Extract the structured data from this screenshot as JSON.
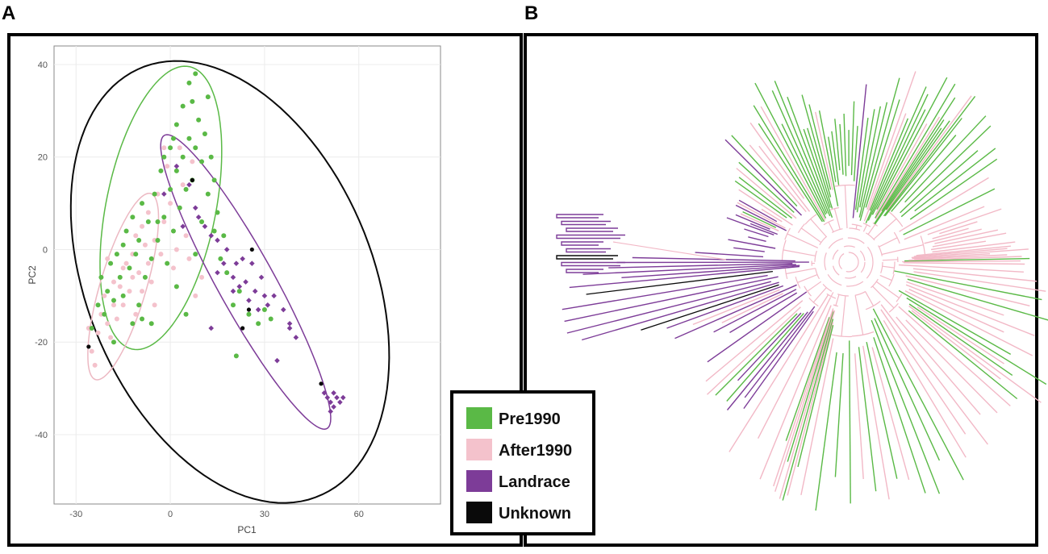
{
  "panels": {
    "a_label": "A",
    "b_label": "B"
  },
  "colors": {
    "Pre1990": "#5ab946",
    "After1990": "#f4c2cc",
    "Landrace": "#7d3c98",
    "Unknown": "#0a0a0a"
  },
  "legend": [
    {
      "label": "Pre1990",
      "color": "#5ab946"
    },
    {
      "label": "After1990",
      "color": "#f4c2cc"
    },
    {
      "label": "Landrace",
      "color": "#7d3c98"
    },
    {
      "label": "Unknown",
      "color": "#0a0a0a"
    }
  ],
  "chart_data": [
    {
      "type": "scatter",
      "panel": "A",
      "title": "",
      "xlabel": "PC1",
      "ylabel": "PC2",
      "xlim": [
        -37,
        86
      ],
      "ylim": [
        -55,
        44
      ],
      "xticks": [
        -30,
        0,
        30,
        60
      ],
      "yticks": [
        40,
        20,
        0,
        -20,
        -40
      ],
      "grid": true,
      "ellipses": [
        {
          "group": "Unknown",
          "cx": 19,
          "cy": -7,
          "rx": 57,
          "ry": 40,
          "angle_deg": -40
        },
        {
          "group": "Pre1990",
          "cx": -3,
          "cy": 9,
          "rx": 32,
          "ry": 17,
          "angle_deg": 70
        },
        {
          "group": "Landrace",
          "cx": 24,
          "cy": -7,
          "rx": 41,
          "ry": 8,
          "angle_deg": -50
        },
        {
          "group": "After1990",
          "cx": -15,
          "cy": -8,
          "rx": 22,
          "ry": 7,
          "angle_deg": 65
        }
      ],
      "series": [
        {
          "name": "After1990",
          "points": [
            [
              -25,
              -22
            ],
            [
              -24,
              -25
            ],
            [
              -23,
              -18
            ],
            [
              -22,
              -14
            ],
            [
              -21,
              -10
            ],
            [
              -20,
              -16
            ],
            [
              -19,
              -19
            ],
            [
              -18,
              -12
            ],
            [
              -18,
              -7
            ],
            [
              -17,
              -15
            ],
            [
              -16,
              -8
            ],
            [
              -15,
              -4
            ],
            [
              -15,
              -12
            ],
            [
              -14,
              -3
            ],
            [
              -13,
              -9
            ],
            [
              -12,
              -6
            ],
            [
              -12,
              -1
            ],
            [
              -11,
              3
            ],
            [
              -10,
              -5
            ],
            [
              -9,
              -9
            ],
            [
              -9,
              5
            ],
            [
              -8,
              1
            ],
            [
              -7,
              -3
            ],
            [
              -7,
              8
            ],
            [
              -6,
              -7
            ],
            [
              -5,
              2
            ],
            [
              -4,
              12
            ],
            [
              -3,
              -1
            ],
            [
              -2,
              6
            ],
            [
              -1,
              18
            ],
            [
              0,
              10
            ],
            [
              1,
              -4
            ],
            [
              2,
              0
            ],
            [
              3,
              22
            ],
            [
              4,
              14
            ],
            [
              5,
              3
            ],
            [
              6,
              -2
            ],
            [
              8,
              -10
            ],
            [
              -26,
              -17
            ],
            [
              -20,
              -2
            ],
            [
              -11,
              -14
            ],
            [
              -5,
              -12
            ],
            [
              10,
              -6
            ],
            [
              7,
              19
            ],
            [
              -2,
              22
            ]
          ]
        },
        {
          "name": "Pre1990",
          "points": [
            [
              -25,
              -17
            ],
            [
              -23,
              -12
            ],
            [
              -22,
              -6
            ],
            [
              -21,
              -14
            ],
            [
              -20,
              -9
            ],
            [
              -19,
              -3
            ],
            [
              -18,
              -11
            ],
            [
              -17,
              -1
            ],
            [
              -16,
              -6
            ],
            [
              -15,
              1
            ],
            [
              -15,
              -10
            ],
            [
              -14,
              4
            ],
            [
              -13,
              -4
            ],
            [
              -12,
              7
            ],
            [
              -11,
              -1
            ],
            [
              -10,
              2
            ],
            [
              -10,
              -12
            ],
            [
              -9,
              10
            ],
            [
              -8,
              -6
            ],
            [
              -7,
              6
            ],
            [
              -6,
              -2
            ],
            [
              -5,
              12
            ],
            [
              -4,
              2
            ],
            [
              -3,
              17
            ],
            [
              -2,
              7
            ],
            [
              -1,
              -3
            ],
            [
              0,
              22
            ],
            [
              0,
              13
            ],
            [
              1,
              4
            ],
            [
              2,
              27
            ],
            [
              2,
              17
            ],
            [
              3,
              9
            ],
            [
              4,
              31
            ],
            [
              4,
              20
            ],
            [
              5,
              13
            ],
            [
              6,
              36
            ],
            [
              6,
              24
            ],
            [
              7,
              32
            ],
            [
              7,
              15
            ],
            [
              8,
              38
            ],
            [
              8,
              22
            ],
            [
              9,
              28
            ],
            [
              10,
              19
            ],
            [
              11,
              25
            ],
            [
              12,
              33
            ],
            [
              12,
              12
            ],
            [
              13,
              20
            ],
            [
              14,
              4
            ],
            [
              15,
              8
            ],
            [
              16,
              -2
            ],
            [
              17,
              3
            ],
            [
              18,
              -5
            ],
            [
              20,
              -12
            ],
            [
              22,
              -9
            ],
            [
              25,
              -14
            ],
            [
              28,
              -16
            ],
            [
              30,
              -13
            ],
            [
              32,
              -15
            ],
            [
              -6,
              -16
            ],
            [
              -4,
              6
            ],
            [
              2,
              -8
            ],
            [
              8,
              -1
            ],
            [
              -18,
              -20
            ],
            [
              -12,
              -16
            ],
            [
              5,
              -14
            ],
            [
              -9,
              -15
            ],
            [
              14,
              15
            ],
            [
              10,
              6
            ],
            [
              21,
              -23
            ],
            [
              1,
              24
            ],
            [
              -2,
              20
            ]
          ]
        },
        {
          "name": "Landrace",
          "points": [
            [
              -2,
              12
            ],
            [
              2,
              18
            ],
            [
              6,
              14
            ],
            [
              9,
              7
            ],
            [
              11,
              5
            ],
            [
              13,
              3
            ],
            [
              15,
              2
            ],
            [
              15,
              -5
            ],
            [
              17,
              -3
            ],
            [
              18,
              0
            ],
            [
              20,
              -6
            ],
            [
              21,
              -3
            ],
            [
              22,
              -8
            ],
            [
              23,
              -2
            ],
            [
              24,
              -7
            ],
            [
              25,
              -11
            ],
            [
              26,
              -3
            ],
            [
              27,
              -9
            ],
            [
              28,
              -13
            ],
            [
              29,
              -6
            ],
            [
              30,
              -10
            ],
            [
              31,
              -12
            ],
            [
              33,
              -10
            ],
            [
              36,
              -13
            ],
            [
              38,
              -16
            ],
            [
              38,
              -17
            ],
            [
              40,
              -19
            ],
            [
              34,
              -24
            ],
            [
              49,
              -31
            ],
            [
              50,
              -32
            ],
            [
              51,
              -33
            ],
            [
              52,
              -31
            ],
            [
              52,
              -34
            ],
            [
              53,
              -32
            ],
            [
              54,
              -33
            ],
            [
              55,
              -32
            ],
            [
              51,
              -35
            ],
            [
              20,
              -9
            ],
            [
              13,
              -17
            ],
            [
              8,
              9
            ],
            [
              4,
              5
            ]
          ]
        },
        {
          "name": "Unknown",
          "points": [
            [
              -26,
              -21
            ],
            [
              7,
              15
            ],
            [
              26,
              0
            ],
            [
              25,
              -13
            ],
            [
              23,
              -17
            ],
            [
              48,
              -29
            ]
          ]
        }
      ]
    },
    {
      "type": "tree",
      "panel": "B",
      "title": "",
      "layout": "unrooted radial cladogram",
      "tips_by_group": {
        "Pre1990": 180,
        "After1990": 150,
        "Landrace": 60,
        "Unknown": 6
      }
    }
  ]
}
